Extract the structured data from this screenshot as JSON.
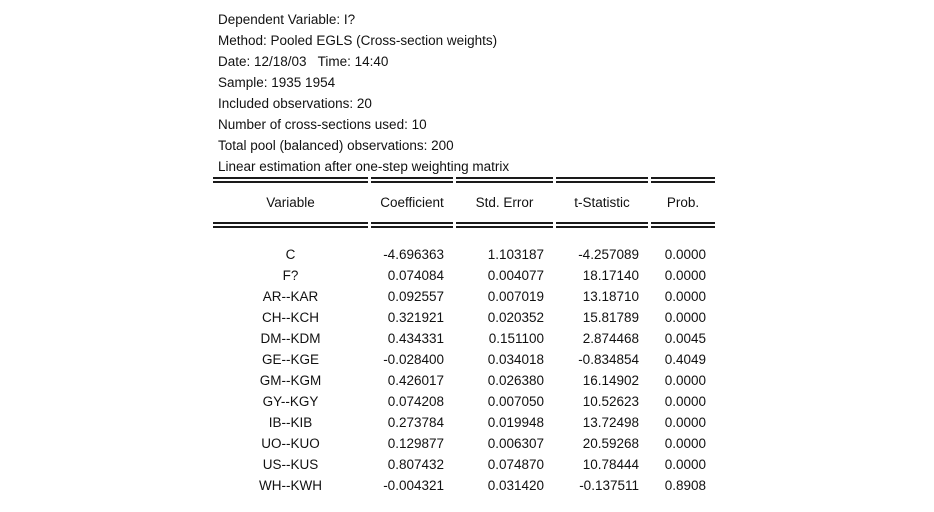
{
  "output_header": {
    "lines": [
      "Dependent Variable: I?",
      "Method: Pooled EGLS (Cross-section weights)",
      "Date: 12/18/03   Time: 14:40",
      "Sample: 1935 1954",
      "Included observations: 20",
      "Number of cross-sections used: 10",
      "Total pool (balanced) observations: 200",
      "Linear estimation after one-step weighting matrix"
    ]
  },
  "table": {
    "columns": [
      "Variable",
      "Coefficient",
      "Std. Error",
      "t-Statistic",
      "Prob."
    ],
    "rows": [
      [
        "C",
        "-4.696363",
        "1.103187",
        "-4.257089",
        "0.0000"
      ],
      [
        "F?",
        "0.074084",
        "0.004077",
        "18.17140",
        "0.0000"
      ],
      [
        "AR--KAR",
        "0.092557",
        "0.007019",
        "13.18710",
        "0.0000"
      ],
      [
        "CH--KCH",
        "0.321921",
        "0.020352",
        "15.81789",
        "0.0000"
      ],
      [
        "DM--KDM",
        "0.434331",
        "0.151100",
        "2.874468",
        "0.0045"
      ],
      [
        "GE--KGE",
        "-0.028400",
        "0.034018",
        "-0.834854",
        "0.4049"
      ],
      [
        "GM--KGM",
        "0.426017",
        "0.026380",
        "16.14902",
        "0.0000"
      ],
      [
        "GY--KGY",
        "0.074208",
        "0.007050",
        "10.52623",
        "0.0000"
      ],
      [
        "IB--KIB",
        "0.273784",
        "0.019948",
        "13.72498",
        "0.0000"
      ],
      [
        "UO--KUO",
        "0.129877",
        "0.006307",
        "20.59268",
        "0.0000"
      ],
      [
        "US--KUS",
        "0.807432",
        "0.074870",
        "10.78444",
        "0.0000"
      ],
      [
        "WH--KWH",
        "-0.004321",
        "0.031420",
        "-0.137511",
        "0.8908"
      ]
    ]
  },
  "colors": {
    "text": "#111111",
    "rule": "#1a1a1a",
    "background": "#ffffff"
  }
}
